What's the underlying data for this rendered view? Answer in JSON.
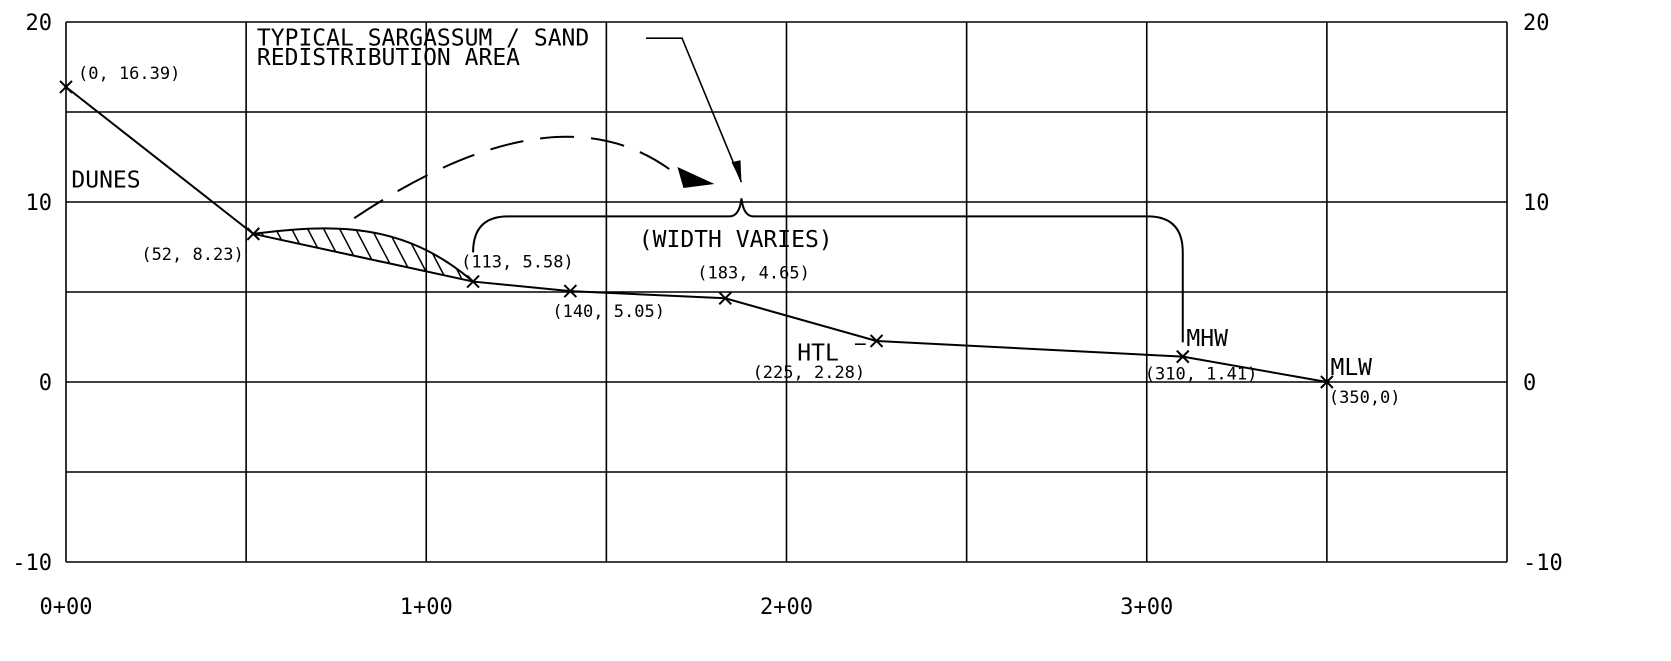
{
  "chart_data": {
    "type": "line",
    "title": "",
    "xlabel": "",
    "ylabel": "",
    "xlim": [
      0,
      400
    ],
    "ylim": [
      -10,
      20
    ],
    "x_grid_step": 50,
    "y_grid_step": 5,
    "grid": true,
    "x_tick_labels": [
      {
        "x": 0,
        "label": "0+00"
      },
      {
        "x": 100,
        "label": "1+00"
      },
      {
        "x": 200,
        "label": "2+00"
      },
      {
        "x": 300,
        "label": "3+00"
      }
    ],
    "y_tick_labels": [
      {
        "y": 20,
        "label": "20"
      },
      {
        "y": 10,
        "label": "10"
      },
      {
        "y": 0,
        "label": "0"
      },
      {
        "y": -10,
        "label": "-10"
      }
    ],
    "series": [
      {
        "points": [
          {
            "x": 0,
            "y": 16.39,
            "label": "(0, 16.39)"
          },
          {
            "x": 52,
            "y": 8.23,
            "label": "(52, 8.23)"
          },
          {
            "x": 113,
            "y": 5.58,
            "label": "(113, 5.58)"
          },
          {
            "x": 140,
            "y": 5.05,
            "label": "(140, 5.05)"
          },
          {
            "x": 183,
            "y": 4.65,
            "label": "(183, 4.65)"
          },
          {
            "x": 225,
            "y": 2.28,
            "label": "(225, 2.28)"
          },
          {
            "x": 310,
            "y": 1.41,
            "label": "(310, 1.41)"
          },
          {
            "x": 350,
            "y": 0,
            "label": "(350,0)"
          }
        ]
      }
    ],
    "annotations": {
      "dunes": "DUNES",
      "htl": "HTL",
      "mhw": "MHW",
      "mlw": "MLW",
      "area_line1": "TYPICAL SARGASSUM / SAND",
      "area_line2": "REDISTRIBUTION AREA",
      "width": "(WIDTH VARIES)"
    },
    "hatched_region_x": [
      52,
      113
    ]
  }
}
